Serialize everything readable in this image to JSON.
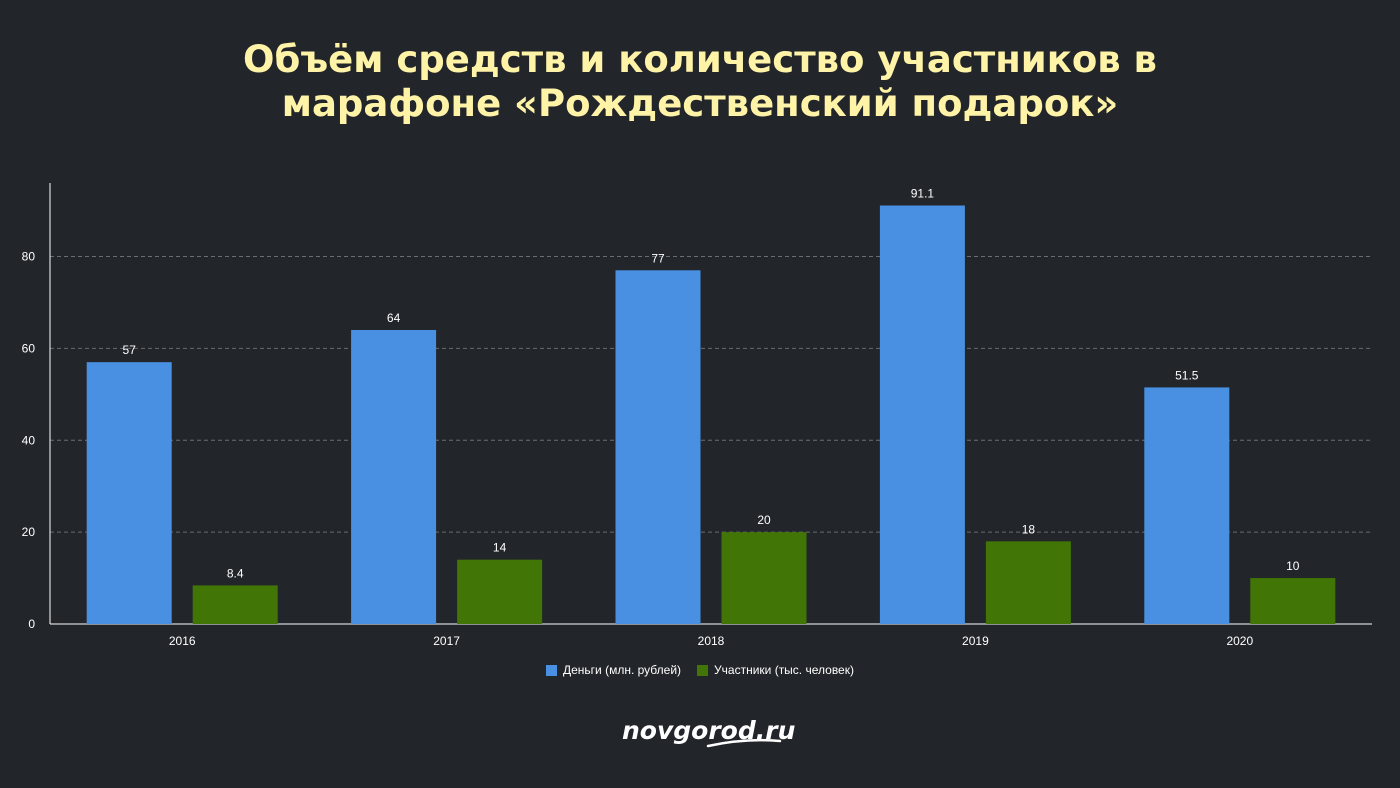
{
  "title_lines": [
    "Объём средств и количество участников в",
    "марафоне «Рождественский подарок»"
  ],
  "brand": "novgorod.ru",
  "colors": {
    "background": "#22262a",
    "title": "#fff3a8",
    "money": "#4a90e2",
    "participants": "#417505",
    "grid": "#6a6e72",
    "text": "#ffffff"
  },
  "chart_data": {
    "type": "bar",
    "categories": [
      "2016",
      "2017",
      "2018",
      "2019",
      "2020"
    ],
    "series": [
      {
        "name": "Деньги (млн. рублей)",
        "values": [
          57,
          64,
          77,
          91.1,
          51.5
        ],
        "labels": [
          "57",
          "64",
          "77",
          "91.1",
          "51.5"
        ]
      },
      {
        "name": "Участники (тыс. человек)",
        "values": [
          8.4,
          14,
          20,
          18,
          10
        ],
        "labels": [
          "8.4",
          "14",
          "20",
          "18",
          "10"
        ]
      }
    ],
    "yticks": [
      "0",
      "20",
      "40",
      "60",
      "80"
    ],
    "ylim": [
      0,
      96
    ],
    "grid": true,
    "legend_position": "bottom"
  }
}
